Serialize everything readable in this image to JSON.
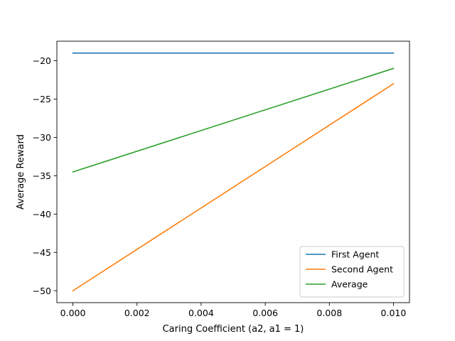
{
  "chart_data": {
    "type": "line",
    "title": "",
    "xlabel": "Caring Coefficient (a2, a1 = 1)",
    "ylabel": "Average Reward",
    "x": [
      0.0,
      0.01
    ],
    "xlim": [
      -0.0005,
      0.0105
    ],
    "ylim": [
      -51.55,
      -17.45
    ],
    "xticks": [
      0.0,
      0.002,
      0.004,
      0.006,
      0.008,
      0.01
    ],
    "xtick_labels": [
      "0.000",
      "0.002",
      "0.004",
      "0.006",
      "0.008",
      "0.010"
    ],
    "yticks": [
      -50,
      -45,
      -40,
      -35,
      -30,
      -25,
      -20
    ],
    "ytick_labels": [
      "−50",
      "−45",
      "−40",
      "−35",
      "−30",
      "−25",
      "−20"
    ],
    "grid": false,
    "legend_position": "lower-right",
    "series": [
      {
        "name": "First Agent",
        "values": [
          -19.0,
          -19.0
        ],
        "color": "#1f77b4"
      },
      {
        "name": "Second Agent",
        "values": [
          -50.0,
          -23.0
        ],
        "color": "#ff7f0e"
      },
      {
        "name": "Average",
        "values": [
          -34.5,
          -21.0
        ],
        "color": "#2ca02c"
      }
    ]
  }
}
